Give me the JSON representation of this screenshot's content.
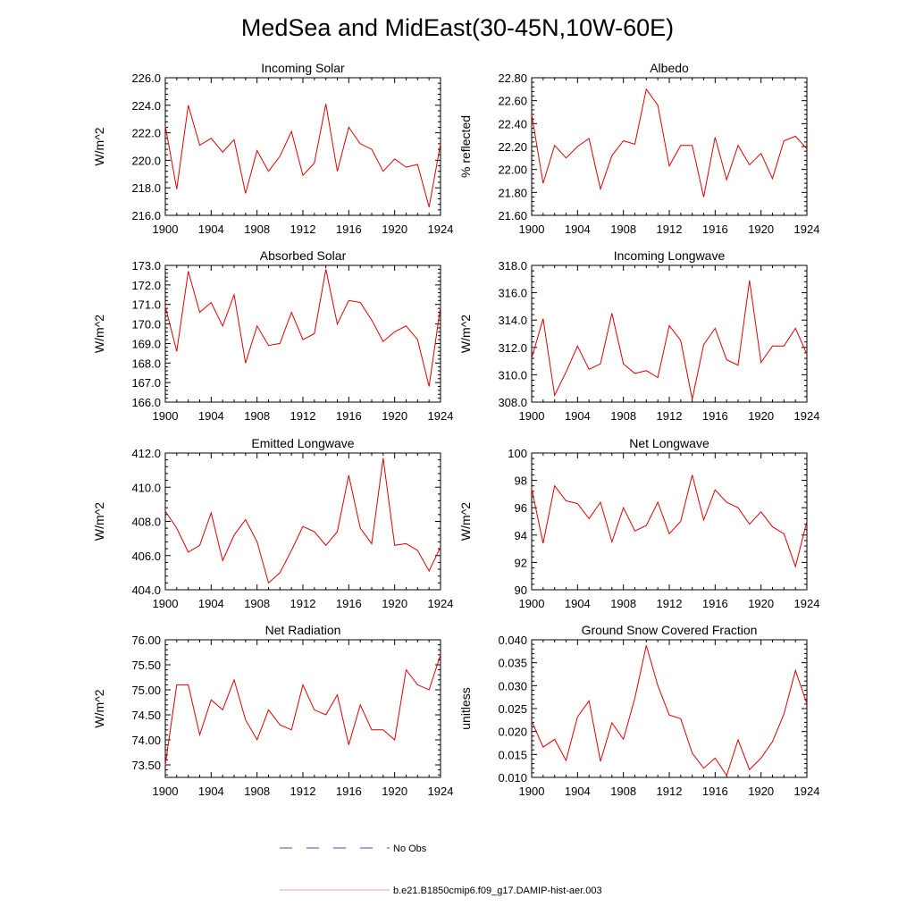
{
  "title": "MedSea and MidEast(30-45N,10W-60E)",
  "legend": {
    "items": [
      {
        "label": "No Obs",
        "color": "#4a4ab0",
        "style": "dashed"
      },
      {
        "label": "b.e21.B1850cmip6.f09_g17.DAMIP-hist-aer.003",
        "color": "#e8a0a0",
        "style": "solid"
      }
    ]
  },
  "series_color": "#e00000",
  "chart_data": [
    {
      "type": "line",
      "title": "Incoming Solar",
      "xlabel": "",
      "ylabel": "W/m^2",
      "xlim": [
        1900,
        1924
      ],
      "ylim": [
        216,
        226
      ],
      "xticks": [
        "1900",
        "1904",
        "1908",
        "1912",
        "1916",
        "1920",
        "1924"
      ],
      "yticks": [
        "216.0",
        "218.0",
        "220.0",
        "222.0",
        "224.0",
        "226.0"
      ],
      "x": [
        1900,
        1901,
        1902,
        1903,
        1904,
        1905,
        1906,
        1907,
        1908,
        1909,
        1910,
        1911,
        1912,
        1913,
        1914,
        1915,
        1916,
        1917,
        1918,
        1919,
        1920,
        1921,
        1922,
        1923,
        1924
      ],
      "values": [
        222.5,
        217.9,
        224.0,
        221.1,
        221.6,
        220.6,
        221.5,
        217.6,
        220.7,
        219.2,
        220.3,
        222.1,
        218.9,
        219.8,
        224.1,
        219.2,
        222.4,
        221.2,
        220.8,
        219.2,
        220.1,
        219.5,
        219.7,
        216.6,
        221.2
      ]
    },
    {
      "type": "line",
      "title": "Albedo",
      "xlabel": "",
      "ylabel": "% reflected",
      "xlim": [
        1900,
        1924
      ],
      "ylim": [
        21.6,
        22.8
      ],
      "xticks": [
        "1900",
        "1904",
        "1908",
        "1912",
        "1916",
        "1920",
        "1924"
      ],
      "yticks": [
        "21.60",
        "21.80",
        "22.00",
        "22.20",
        "22.40",
        "22.60",
        "22.80"
      ],
      "x": [
        1900,
        1901,
        1902,
        1903,
        1904,
        1905,
        1906,
        1907,
        1908,
        1909,
        1910,
        1911,
        1912,
        1913,
        1914,
        1915,
        1916,
        1917,
        1918,
        1919,
        1920,
        1921,
        1922,
        1923,
        1924
      ],
      "values": [
        22.48,
        21.88,
        22.21,
        22.1,
        22.2,
        22.27,
        21.83,
        22.12,
        22.25,
        22.22,
        22.7,
        22.56,
        22.03,
        22.21,
        22.21,
        21.76,
        22.28,
        21.91,
        22.21,
        22.04,
        22.14,
        21.92,
        22.25,
        22.29,
        22.18
      ]
    },
    {
      "type": "line",
      "title": "Absorbed Solar",
      "xlabel": "",
      "ylabel": "W/m^2",
      "xlim": [
        1900,
        1924
      ],
      "ylim": [
        166,
        173
      ],
      "xticks": [
        "1900",
        "1904",
        "1908",
        "1912",
        "1916",
        "1920",
        "1924"
      ],
      "yticks": [
        "166.0",
        "167.0",
        "168.0",
        "169.0",
        "170.0",
        "171.0",
        "172.0",
        "173.0"
      ],
      "x": [
        1900,
        1901,
        1902,
        1903,
        1904,
        1905,
        1906,
        1907,
        1908,
        1909,
        1910,
        1911,
        1912,
        1913,
        1914,
        1915,
        1916,
        1917,
        1918,
        1919,
        1920,
        1921,
        1922,
        1923,
        1924
      ],
      "values": [
        170.9,
        168.6,
        172.7,
        170.6,
        171.1,
        169.9,
        171.5,
        168.0,
        169.9,
        168.9,
        169.0,
        170.6,
        169.2,
        169.5,
        172.8,
        170.0,
        171.2,
        171.1,
        170.2,
        169.1,
        169.6,
        169.9,
        169.2,
        166.8,
        170.9
      ]
    },
    {
      "type": "line",
      "title": "Incoming Longwave",
      "xlabel": "",
      "ylabel": "W/m^2",
      "xlim": [
        1900,
        1924
      ],
      "ylim": [
        308,
        318
      ],
      "xticks": [
        "1900",
        "1904",
        "1908",
        "1912",
        "1916",
        "1920",
        "1924"
      ],
      "yticks": [
        "308.0",
        "310.0",
        "312.0",
        "314.0",
        "316.0",
        "318.0"
      ],
      "x": [
        1900,
        1901,
        1902,
        1903,
        1904,
        1905,
        1906,
        1907,
        1908,
        1909,
        1910,
        1911,
        1912,
        1913,
        1914,
        1915,
        1916,
        1917,
        1918,
        1919,
        1920,
        1921,
        1922,
        1923,
        1924
      ],
      "values": [
        311.2,
        314.1,
        308.5,
        310.2,
        312.1,
        310.4,
        310.8,
        314.5,
        310.8,
        310.1,
        310.3,
        309.8,
        313.6,
        312.5,
        308.2,
        312.2,
        313.4,
        311.1,
        310.7,
        316.9,
        310.9,
        312.1,
        312.1,
        313.4,
        311.5
      ]
    },
    {
      "type": "line",
      "title": "Emitted Longwave",
      "xlabel": "",
      "ylabel": "W/m^2",
      "xlim": [
        1900,
        1924
      ],
      "ylim": [
        404,
        412
      ],
      "xticks": [
        "1900",
        "1904",
        "1908",
        "1912",
        "1916",
        "1920",
        "1924"
      ],
      "yticks": [
        "404.0",
        "406.0",
        "408.0",
        "410.0",
        "412.0"
      ],
      "x": [
        1900,
        1901,
        1902,
        1903,
        1904,
        1905,
        1906,
        1907,
        1908,
        1909,
        1910,
        1911,
        1912,
        1913,
        1914,
        1915,
        1916,
        1917,
        1918,
        1919,
        1920,
        1921,
        1922,
        1923,
        1924
      ],
      "values": [
        408.6,
        407.6,
        406.2,
        406.6,
        408.5,
        405.7,
        407.2,
        408.1,
        406.8,
        404.4,
        405.0,
        406.3,
        407.7,
        407.4,
        406.6,
        407.4,
        410.7,
        407.6,
        406.7,
        411.7,
        406.6,
        406.7,
        406.3,
        405.1,
        406.5
      ]
    },
    {
      "type": "line",
      "title": "Net Longwave",
      "xlabel": "",
      "ylabel": "W/m^2",
      "xlim": [
        1900,
        1924
      ],
      "ylim": [
        90,
        100
      ],
      "xticks": [
        "1900",
        "1904",
        "1908",
        "1912",
        "1916",
        "1920",
        "1924"
      ],
      "yticks": [
        "90",
        "92",
        "94",
        "96",
        "98",
        "100"
      ],
      "x": [
        1900,
        1901,
        1902,
        1903,
        1904,
        1905,
        1906,
        1907,
        1908,
        1909,
        1910,
        1911,
        1912,
        1913,
        1914,
        1915,
        1916,
        1917,
        1918,
        1919,
        1920,
        1921,
        1922,
        1923,
        1924
      ],
      "values": [
        97.4,
        93.4,
        97.6,
        96.5,
        96.3,
        95.2,
        96.4,
        93.5,
        96.0,
        94.3,
        94.7,
        96.4,
        94.1,
        95.0,
        98.4,
        95.1,
        97.3,
        96.4,
        96.0,
        94.8,
        95.7,
        94.6,
        94.1,
        91.7,
        95.0
      ]
    },
    {
      "type": "line",
      "title": "Net Radiation",
      "xlabel": "",
      "ylabel": "W/m^2",
      "xlim": [
        1900,
        1924
      ],
      "ylim": [
        73.25,
        76.0
      ],
      "xticks": [
        "1900",
        "1904",
        "1908",
        "1912",
        "1916",
        "1920",
        "1924"
      ],
      "yticks": [
        "73.50",
        "74.00",
        "74.50",
        "75.00",
        "75.50",
        "76.00"
      ],
      "x": [
        1900,
        1901,
        1902,
        1903,
        1904,
        1905,
        1906,
        1907,
        1908,
        1909,
        1910,
        1911,
        1912,
        1913,
        1914,
        1915,
        1916,
        1917,
        1918,
        1919,
        1920,
        1921,
        1922,
        1923,
        1924
      ],
      "values": [
        73.5,
        75.1,
        75.1,
        74.1,
        74.8,
        74.6,
        75.2,
        74.4,
        74.0,
        74.6,
        74.3,
        74.2,
        75.1,
        74.6,
        74.5,
        74.9,
        73.9,
        74.7,
        74.2,
        74.2,
        74.0,
        75.4,
        75.1,
        75.0,
        75.7
      ]
    },
    {
      "type": "line",
      "title": "Ground Snow Covered Fraction",
      "xlabel": "",
      "ylabel": "unitless",
      "xlim": [
        1900,
        1924
      ],
      "ylim": [
        0.01,
        0.04
      ],
      "xticks": [
        "1900",
        "1904",
        "1908",
        "1912",
        "1916",
        "1920",
        "1924"
      ],
      "yticks": [
        "0.010",
        "0.015",
        "0.020",
        "0.025",
        "0.030",
        "0.035",
        "0.040"
      ],
      "x": [
        1900,
        1901,
        1902,
        1903,
        1904,
        1905,
        1906,
        1907,
        1908,
        1909,
        1910,
        1911,
        1912,
        1913,
        1914,
        1915,
        1916,
        1917,
        1918,
        1919,
        1920,
        1921,
        1922,
        1923,
        1924
      ],
      "values": [
        0.0223,
        0.0166,
        0.0183,
        0.0137,
        0.0232,
        0.0267,
        0.0135,
        0.0219,
        0.0183,
        0.0273,
        0.0388,
        0.03,
        0.0236,
        0.0228,
        0.0153,
        0.012,
        0.0142,
        0.0104,
        0.0182,
        0.0117,
        0.0142,
        0.0178,
        0.0238,
        0.0333,
        0.0261
      ]
    }
  ]
}
